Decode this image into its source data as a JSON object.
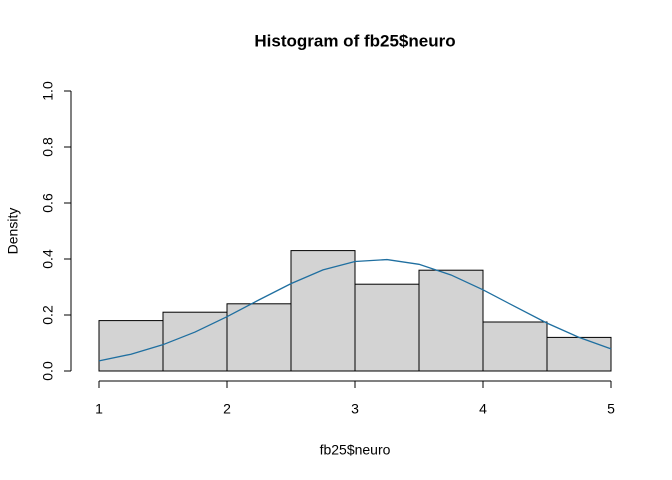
{
  "chart_data": {
    "type": "histogram",
    "title": "Histogram of fb25$neuro",
    "xlabel": "fb25$neuro",
    "ylabel": "Density",
    "bins": [
      1,
      1.5,
      2,
      2.5,
      3,
      3.5,
      4,
      4.5,
      5
    ],
    "values": [
      0.18,
      0.21,
      0.24,
      0.43,
      0.31,
      0.36,
      0.175,
      0.12
    ],
    "color": "#d3d3d3",
    "curve": {
      "x": [
        1,
        1.25,
        1.5,
        1.75,
        2,
        2.25,
        2.5,
        2.75,
        3,
        3.25,
        3.5,
        3.75,
        4,
        4.25,
        4.5,
        4.75,
        5
      ],
      "values": [
        0.036,
        0.06,
        0.094,
        0.139,
        0.194,
        0.254,
        0.312,
        0.361,
        0.391,
        0.398,
        0.381,
        0.343,
        0.29,
        0.23,
        0.171,
        0.12,
        0.079
      ],
      "color": "#1f6fa0"
    },
    "xlim": [
      1,
      5
    ],
    "ylim": [
      0,
      1
    ],
    "xticks": [
      1,
      2,
      3,
      4,
      5
    ],
    "yticks": [
      {
        "value": 0,
        "label": "0.0"
      },
      0.2,
      0.4,
      0.6,
      0.8,
      {
        "value": 1,
        "label": "1.0"
      }
    ]
  }
}
